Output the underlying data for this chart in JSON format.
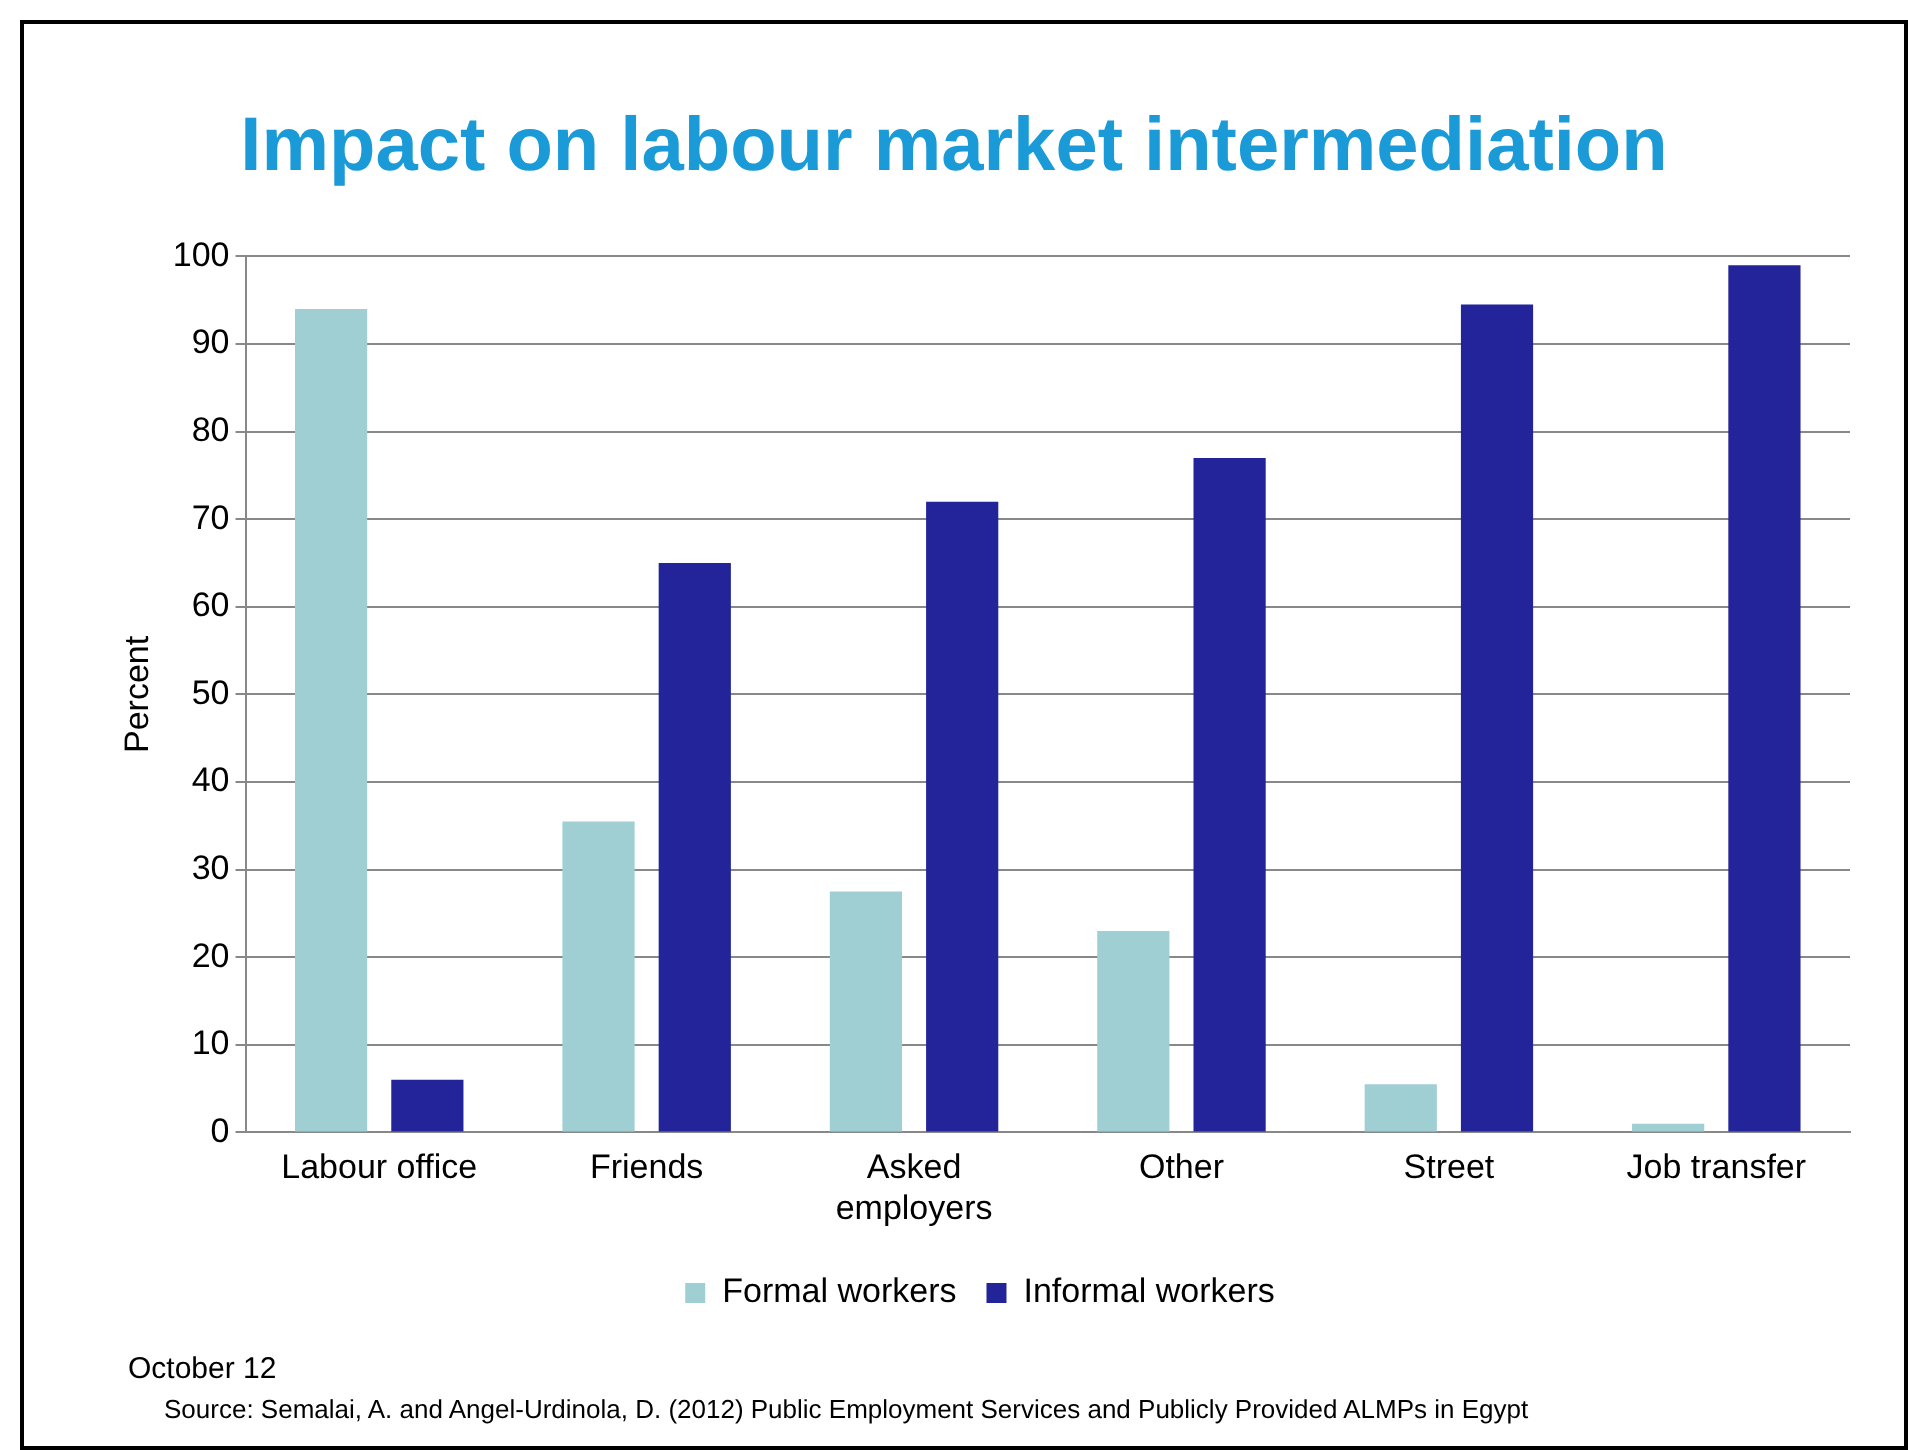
{
  "chart_data": {
    "type": "bar",
    "title": "Impact on labour market intermediation",
    "ylabel": "Percent",
    "categories": [
      "Labour office",
      "Friends",
      "Asked employers",
      "Other",
      "Street",
      "Job transfer"
    ],
    "series": [
      {
        "name": "Formal workers",
        "color": "#9fcfd3",
        "values": [
          94,
          35.5,
          27.5,
          23,
          5.5,
          1
        ]
      },
      {
        "name": "Informal workers",
        "color": "#23239a",
        "values": [
          6,
          65,
          72,
          77,
          94.5,
          99
        ]
      }
    ],
    "ylim": [
      0,
      100
    ],
    "yticks": [
      0,
      10,
      20,
      30,
      40,
      50,
      60,
      70,
      80,
      90,
      100
    ],
    "grid": "y",
    "legend": "bottom",
    "annotations": [
      "October 12",
      "Source: Semalai, A. and Angel-Urdinola, D. (2012) Public Employment Services and Publicly Provided ALMPs in Egypt"
    ]
  }
}
